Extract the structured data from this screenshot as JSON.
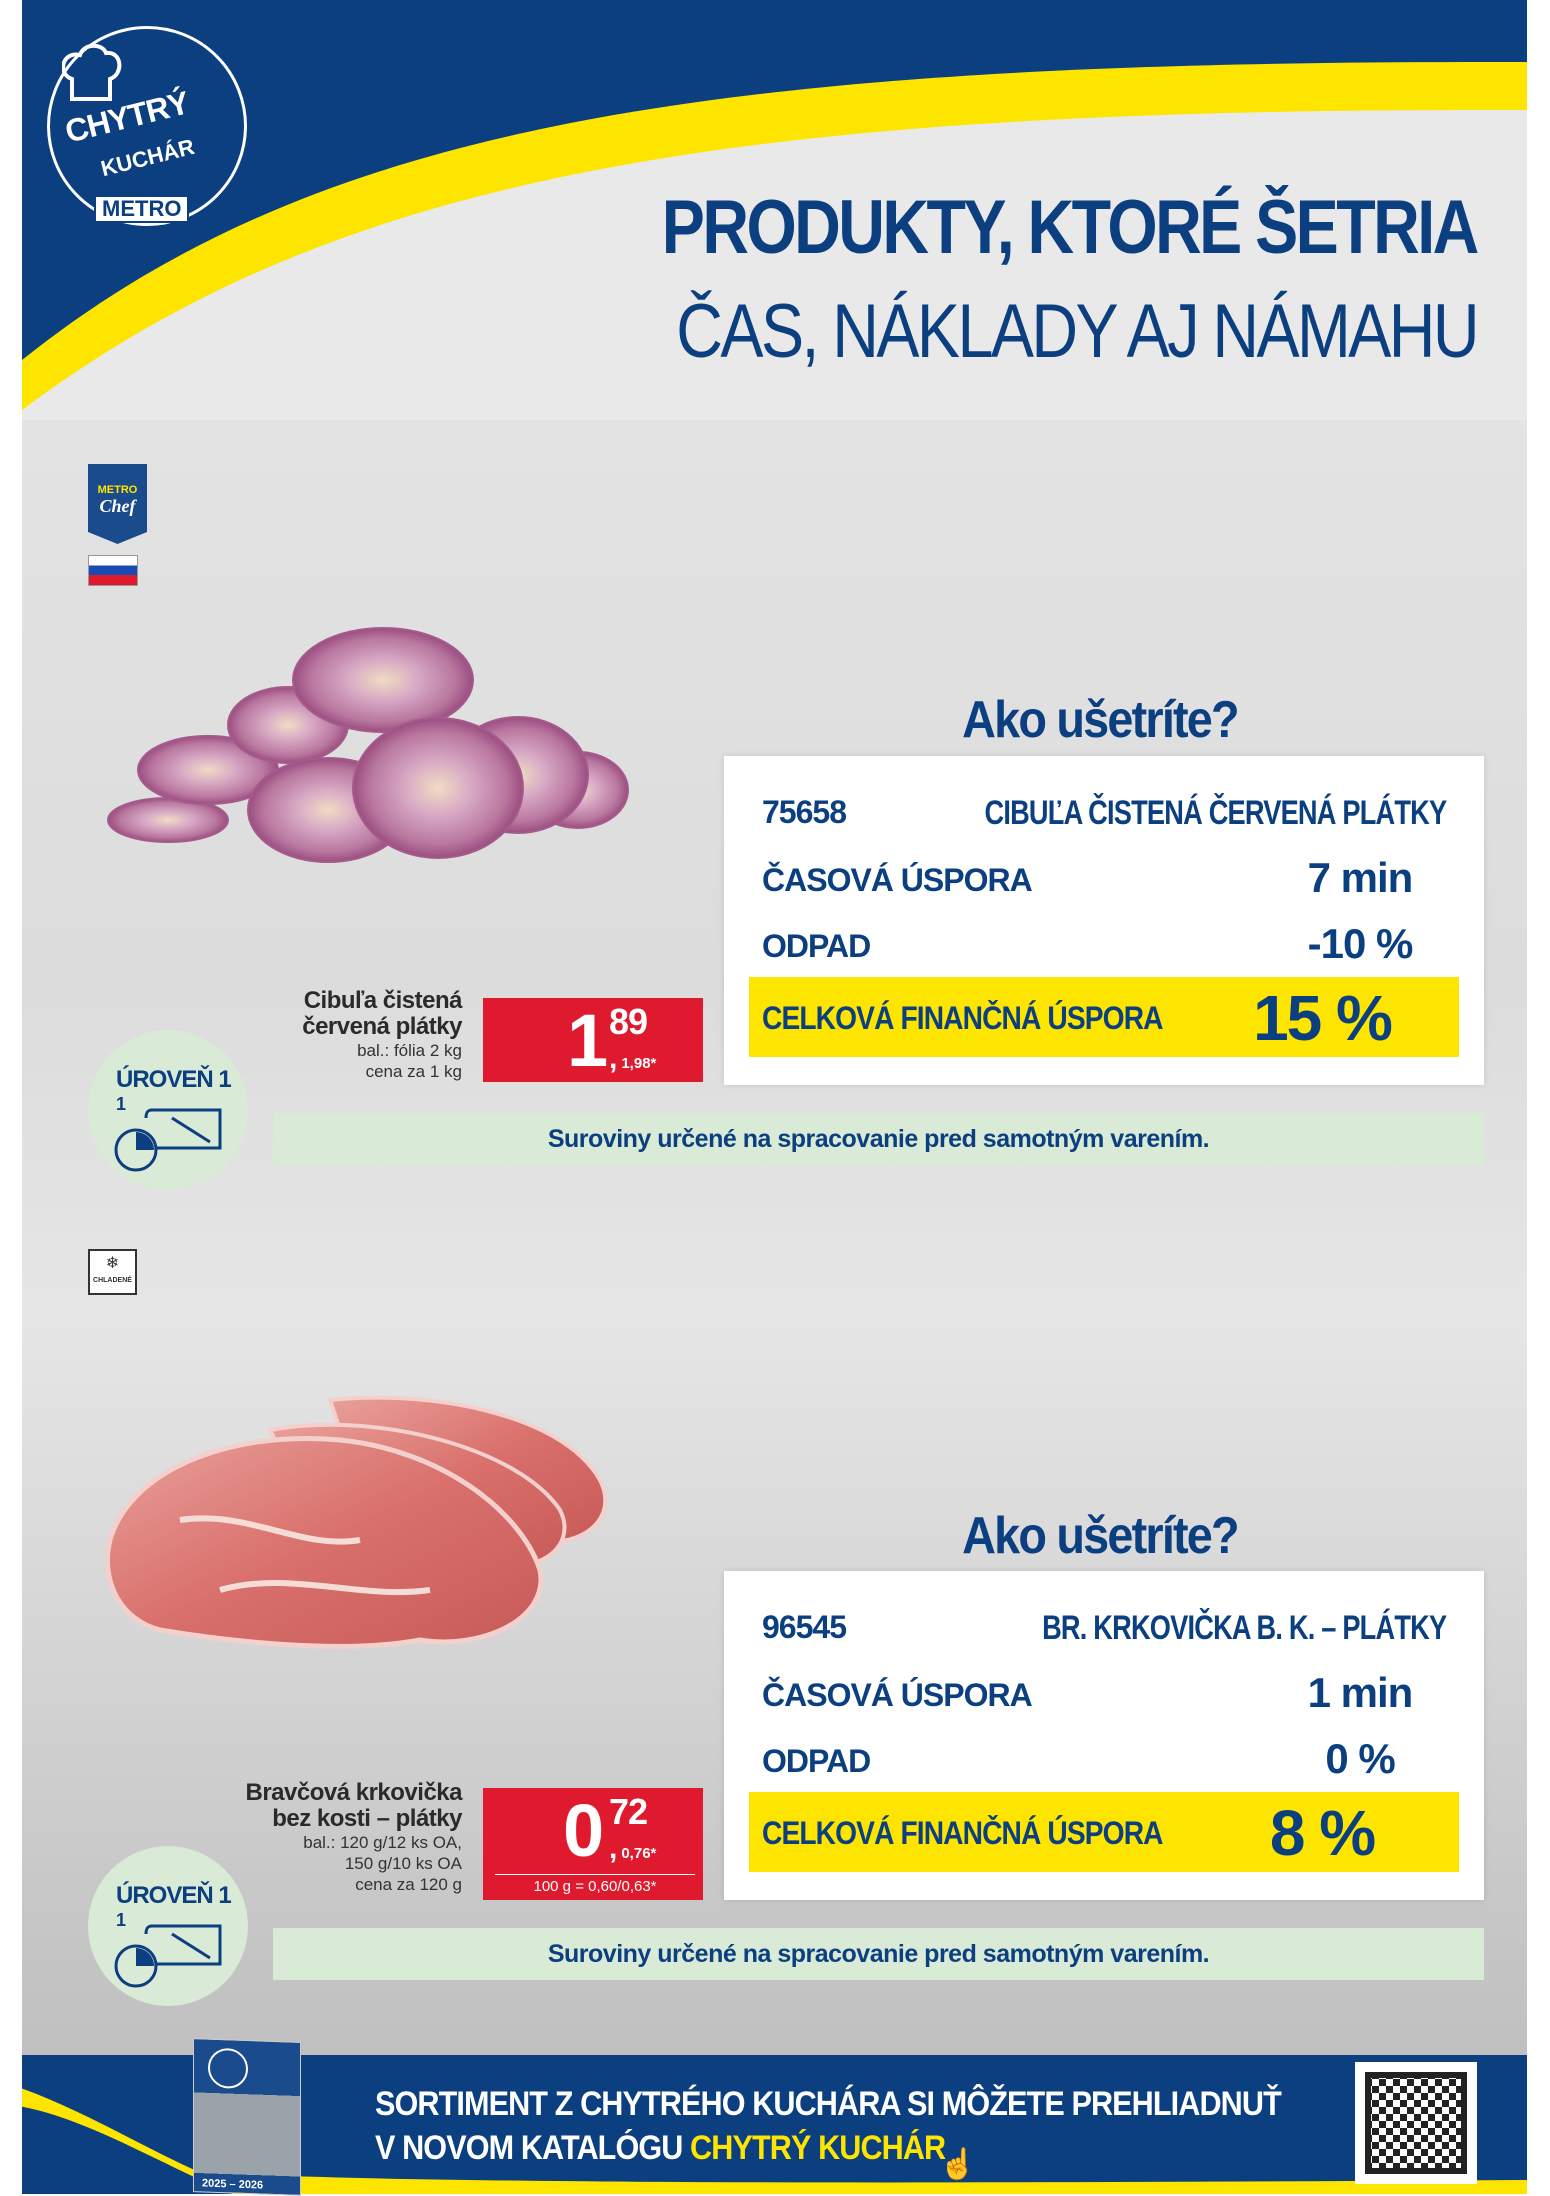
{
  "header": {
    "logo": {
      "line1": "CHYTRÝ",
      "line2": "KUCHÁR",
      "brand": "METRO"
    },
    "title_line1": "PRODUKTY, KTORÉ ŠETRIA",
    "title_line2": "ČAS, NÁKLADY AJ NÁMAHU"
  },
  "colors": {
    "brand_blue": "#0b3f7f",
    "yellow": "#fde500",
    "price_red": "#e01a2e",
    "green_note": "#d9ead6"
  },
  "badges": {
    "metro_chef": {
      "line1": "METRO",
      "line2": "Chef"
    },
    "origin_flag": "slovakia-flag-icon",
    "chilled_label": "CHLADENÉ"
  },
  "products": [
    {
      "name_line1": "Cibuľa čistená",
      "name_line2": "červená plátky",
      "details": [
        "bal.: fólia 2 kg",
        "cena za 1 kg"
      ],
      "price_int": "1",
      "price_dec": "89",
      "price_vat": "1,98*",
      "unit_price": "",
      "level_label": "ÚROVEŇ 1",
      "level_num": "1",
      "savings_heading": "Ako ušetríte?",
      "code": "75658",
      "code_name": "CIBUĽA ČISTENÁ ČERVENÁ PLÁTKY",
      "time_label": "ČASOVÁ ÚSPORA",
      "time_value": "7 min",
      "waste_label": "ODPAD",
      "waste_value": "-10 %",
      "total_label": "CELKOVÁ FINANČNÁ ÚSPORA",
      "total_value": "15 %",
      "note": "Suroviny určené na spracovanie pred samotným varením."
    },
    {
      "name_line1": "Bravčová krkovička",
      "name_line2": "bez kosti – plátky",
      "details": [
        "bal.: 120 g/12 ks OA,",
        "150 g/10 ks OA",
        "cena za 120 g"
      ],
      "price_int": "0",
      "price_dec": "72",
      "price_vat": "0,76*",
      "unit_price": "100 g = 0,60/0,63*",
      "level_label": "ÚROVEŇ 1",
      "level_num": "1",
      "savings_heading": "Ako ušetríte?",
      "code": "96545",
      "code_name": "BR. KRKOVIČKA B. K. – PLÁTKY",
      "time_label": "ČASOVÁ ÚSPORA",
      "time_value": "1 min",
      "waste_label": "ODPAD",
      "waste_value": "0 %",
      "total_label": "CELKOVÁ FINANČNÁ ÚSPORA",
      "total_value": "8 %",
      "note": "Suroviny určené na spracovanie pred samotným varením."
    }
  ],
  "footer": {
    "line1": "SORTIMENT Z CHYTRÉHO KUCHÁRA SI MÔŽETE PREHLIADNUŤ",
    "line2_prefix": "V NOVOM KATALÓGU ",
    "line2_highlight": "CHYTRÝ KUCHÁR",
    "catalog_years": "2025 – 2026"
  }
}
